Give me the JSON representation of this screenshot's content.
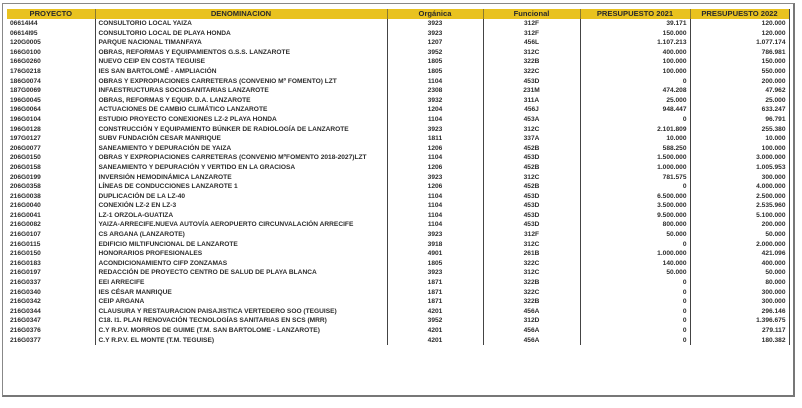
{
  "header_color": "#e9c21f",
  "columns": [
    "PROYECTO",
    "DENOMINACION",
    "Orgánica",
    "Funcional",
    "PRESUPUESTO 2021",
    "PRESUPUESTO 2022"
  ],
  "rows": [
    [
      "06614I44",
      "CONSULTORIO LOCAL YAIZA",
      "3923",
      "312F",
      "39.171",
      "120.000"
    ],
    [
      "06614I95",
      "CONSULTORIO LOCAL DE PLAYA HONDA",
      "3923",
      "312F",
      "150.000",
      "120.000"
    ],
    [
      "120G0005",
      "PARQUE NACIONAL TIMANFAYA",
      "1207",
      "456L",
      "1.107.213",
      "1.077.174"
    ],
    [
      "166G0100",
      "OBRAS, REFORMAS Y EQUIPAMIENTOS G.S.S. LANZAROTE",
      "3952",
      "312C",
      "400.000",
      "786.981"
    ],
    [
      "166G0260",
      "NUEVO CEIP EN COSTA TEGUISE",
      "1805",
      "322B",
      "100.000",
      "150.000"
    ],
    [
      "176G0218",
      "IES SAN BARTOLOMÉ - AMPLIACIÓN",
      "1805",
      "322C",
      "100.000",
      "550.000"
    ],
    [
      "186G0074",
      "OBRAS Y EXPROPIACIONES CARRETERAS (CONVENIO Mº FOMENTO) LZT",
      "1104",
      "453D",
      "0",
      "200.000"
    ],
    [
      "187G0069",
      "INFAESTRUCTURAS SOCIOSANITARIAS LANZAROTE",
      "2308",
      "231M",
      "474.208",
      "47.962"
    ],
    [
      "196G0045",
      "OBRAS, REFORMAS Y EQUIP. D.A. LANZAROTE",
      "3932",
      "311A",
      "25.000",
      "25.000"
    ],
    [
      "196G0064",
      "ACTUACIONES DE CAMBIO CLIMÁTICO LANZAROTE",
      "1204",
      "456J",
      "948.447",
      "633.247"
    ],
    [
      "196G0104",
      "ESTUDIO PROYECTO CONEXIONES LZ-2 PLAYA HONDA",
      "1104",
      "453A",
      "0",
      "96.791"
    ],
    [
      "196G0128",
      "CONSTRUCCIÓN Y EQUIPAMIENTO BÚNKER DE RADIOLOGÍA DE LANZAROTE",
      "3923",
      "312C",
      "2.101.809",
      "255.380"
    ],
    [
      "197G0127",
      "SUBV FUNDACIÓN CESAR MANRIQUE",
      "1811",
      "337A",
      "10.000",
      "10.000"
    ],
    [
      "206G0077",
      "SANEAMIENTO Y DEPURACIÓN DE YAIZA",
      "1206",
      "452B",
      "588.250",
      "100.000"
    ],
    [
      "206G0150",
      "OBRAS Y EXPROPIACIONES CARRETERAS (CONVENIO MºFOMENTO 2018-2027)LZT",
      "1104",
      "453D",
      "1.500.000",
      "3.000.000"
    ],
    [
      "206G0158",
      "SANEAMIENTO Y DEPURACIÓN Y VERTIDO EN LA GRACIOSA",
      "1206",
      "452B",
      "1.000.000",
      "1.005.953"
    ],
    [
      "206G0199",
      "INVERSIÓN HEMODINÁMICA LANZAROTE",
      "3923",
      "312C",
      "781.575",
      "300.000"
    ],
    [
      "206G0358",
      "LÍNEAS DE CONDUCCIONES LANZAROTE 1",
      "1206",
      "452B",
      "0",
      "4.000.000"
    ],
    [
      "216G0038",
      "DUPLICACIÓN DE LA LZ-40",
      "1104",
      "453D",
      "6.500.000",
      "2.500.000"
    ],
    [
      "216G0040",
      "CONEXIÓN LZ-2 EN LZ-3",
      "1104",
      "453D",
      "3.500.000",
      "2.535.960"
    ],
    [
      "216G0041",
      "LZ-1 ORZOLA-GUATIZA",
      "1104",
      "453D",
      "9.500.000",
      "5.100.000"
    ],
    [
      "216G0082",
      "YAIZA-ARRECIFE.NUEVA AUTOVÍA AEROPUERTO CIRCUNVALACIÓN ARRECIFE",
      "1104",
      "453D",
      "800.000",
      "200.000"
    ],
    [
      "216G0107",
      "CS ARGANA (LANZAROTE)",
      "3923",
      "312F",
      "50.000",
      "50.000"
    ],
    [
      "216G0115",
      "EDIFICIO MILTIFUNCIONAL DE LANZAROTE",
      "3918",
      "312C",
      "0",
      "2.000.000"
    ],
    [
      "216G0150",
      "HONORARIOS PROFESIONALES",
      "4901",
      "261B",
      "1.000.000",
      "421.096"
    ],
    [
      "216G0183",
      "ACONDICIONAMIENTO CIFP ZONZAMAS",
      "1805",
      "322C",
      "140.000",
      "400.000"
    ],
    [
      "216G0197",
      "REDACCIÓN DE PROYECTO CENTRO DE SALUD DE PLAYA BLANCA",
      "3923",
      "312C",
      "50.000",
      "50.000"
    ],
    [
      "216G0337",
      "EEI ARRECIFE",
      "1871",
      "322B",
      "0",
      "80.000"
    ],
    [
      "216G0340",
      "IES CÉSAR MANRIQUE",
      "1871",
      "322C",
      "0",
      "300.000"
    ],
    [
      "216G0342",
      "CEIP ARGANA",
      "1871",
      "322B",
      "0",
      "300.000"
    ],
    [
      "216G0344",
      "CLAUSURA Y RESTAURACION PAISAJISTICA VERTEDERO SOO (TEGUISE)",
      "4201",
      "456A",
      "0",
      "296.146"
    ],
    [
      "216G0347",
      "C18. I1. PLAN RENOVACIÓN TECNOLOGÍAS SANITARIAS EN SCS (MRR)",
      "3952",
      "312D",
      "0",
      "1.396.675"
    ],
    [
      "216G0376",
      "C.Y R.P.V. MORROS DE GUIME (T.M. SAN BARTOLOME - LANZAROTE)",
      "4201",
      "456A",
      "0",
      "279.117"
    ],
    [
      "216G0377",
      "C.Y R.P.V. EL MONTE (T.M. TEGUISE)",
      "4201",
      "456A",
      "0",
      "180.382"
    ]
  ]
}
